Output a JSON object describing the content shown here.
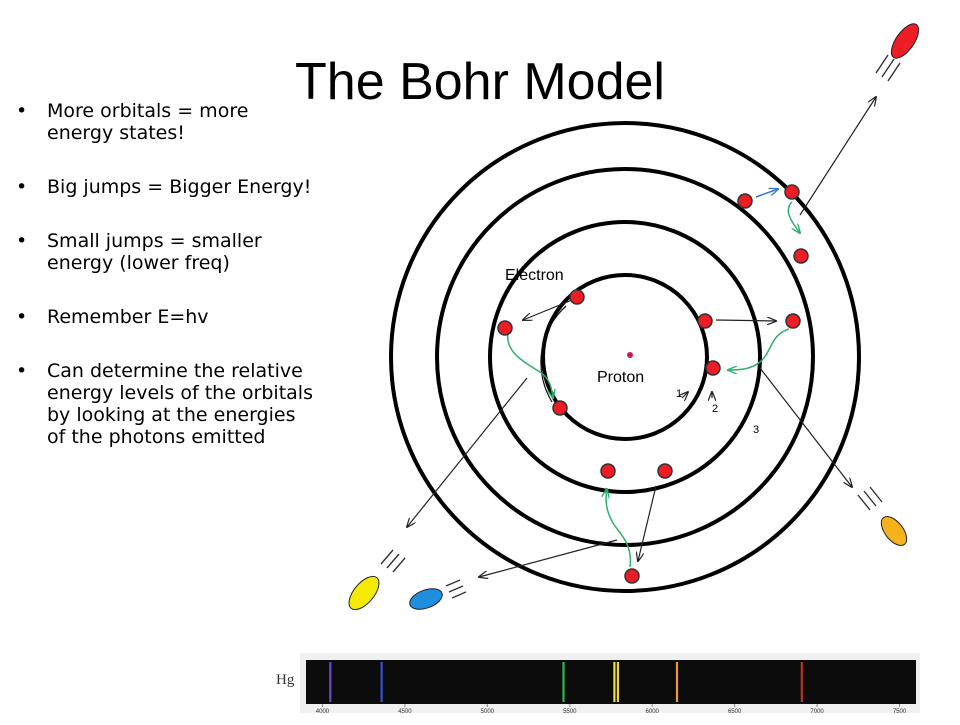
{
  "slide": {
    "title": "The Bohr Model",
    "bullets": [
      "More orbitals = more energy states!",
      "Big jumps = Bigger Energy!",
      "Small jumps = smaller energy (lower freq)",
      "Remember  E=hv",
      "Can determine the relative energy levels of the orbitals by looking at the energies of the photons emitted"
    ]
  },
  "diagram": {
    "labels": {
      "electron": "Electron",
      "proton": "Proton",
      "orbit_1": "1",
      "orbit_2": "2",
      "orbit_3": "3"
    },
    "colors": {
      "electron": "#ee1c24",
      "photon_red": "#ee1c24",
      "photon_orange": "#f5b21c",
      "photon_yellow": "#f4ea00",
      "photon_blue": "#1e8fdc",
      "transition_arrow": "#2fb06c"
    }
  },
  "spectrum": {
    "element_label": "Hg",
    "ticks": [
      "4000",
      "4500",
      "5000",
      "5500",
      "6000",
      "6500",
      "7000",
      "7500"
    ],
    "lines": [
      {
        "wavelength": 4047,
        "color": "#6b4bc8"
      },
      {
        "wavelength": 4358,
        "color": "#3a4fd8"
      },
      {
        "wavelength": 5461,
        "color": "#2fb84a"
      },
      {
        "wavelength": 5770,
        "color": "#e8e04a"
      },
      {
        "wavelength": 5791,
        "color": "#f2d83a"
      },
      {
        "wavelength": 6150,
        "color": "#f09a2e"
      },
      {
        "wavelength": 6907,
        "color": "#b8332a"
      }
    ],
    "range": [
      3900,
      7600
    ]
  }
}
